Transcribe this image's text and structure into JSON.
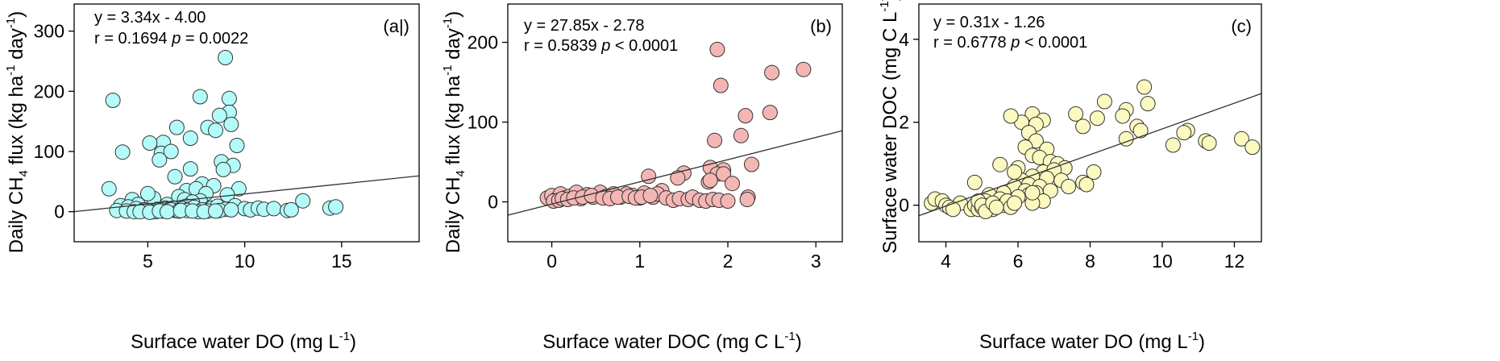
{
  "colors": {
    "a": "#b3fbf9",
    "b": "#f4b6b5",
    "c": "#fbf9bf",
    "marker_edge": "#333333",
    "fit_line": "#333333",
    "frame": "#000000"
  },
  "panels": [
    {
      "panel_label": "(a|)",
      "eq_line": "y = 3.34x - 4.00",
      "stat_r": "r = 0.1694 ",
      "stat_p_symbol": "p",
      "stat_p_rest": " = 0.0022",
      "xlabel": {
        "main": "Surface water DO (mg L",
        "sup": "-1",
        "tail": ")"
      },
      "ylabel": {
        "p1": "Daily CH",
        "sub": "4",
        "p2": " flux (kg ha",
        "sup1": "-1",
        "p3": " day",
        "sup2": "-1",
        "p4": ")"
      },
      "xticks": [
        "5",
        "10",
        "15"
      ],
      "yticks": [
        "0",
        "100",
        "200",
        "300"
      ]
    },
    {
      "panel_label": "(b)",
      "eq_line": "y = 27.85x - 2.78",
      "stat_r": "r = 0.5839 ",
      "stat_p_symbol": "p",
      "stat_p_rest": " < 0.0001",
      "xlabel": {
        "main": "Surface water DOC (mg C L",
        "sup": "-1",
        "tail": ")"
      },
      "ylabel": {
        "p1": "Daily CH",
        "sub": "4",
        "p2": " flux (kg ha",
        "sup1": "-1",
        "p3": " day",
        "sup2": "-1",
        "p4": ")"
      },
      "xticks": [
        "0",
        "1",
        "2",
        "3"
      ],
      "yticks": [
        "0",
        "100",
        "200"
      ]
    },
    {
      "panel_label": "(c)",
      "eq_line": "y = 0.31x - 1.26",
      "stat_r": "r = 0.6778 ",
      "stat_p_symbol": "p",
      "stat_p_rest": " < 0.0001",
      "xlabel": {
        "main": "Surface water DO (mg L",
        "sup": "-1",
        "tail": ")"
      },
      "ylabel": {
        "main": "Surface water DOC (mg C L",
        "sup": "-1",
        "tail": ")"
      },
      "xticks": [
        "4",
        "6",
        "8",
        "10",
        "12"
      ],
      "yticks": [
        "0",
        "2",
        "4"
      ]
    }
  ],
  "chart_data": [
    {
      "type": "scatter",
      "panel": "a",
      "xlim": [
        1.2,
        19
      ],
      "ylim": [
        -50,
        345
      ],
      "grid": false,
      "fit": {
        "slope": 3.34,
        "intercept": -4.0
      },
      "x": [
        3.2,
        9.0,
        7.7,
        9.2,
        9.2,
        9.3,
        8.7,
        8.1,
        8.5,
        8.8,
        6.5,
        7.2,
        9.6,
        5.8,
        5.1,
        3.7,
        5.7,
        6.2,
        5.6,
        9.4,
        8.9,
        7.2,
        9.7,
        6.4,
        7.8,
        8.4,
        7.0,
        7.5,
        8.0,
        9.1,
        4.2,
        5.3,
        6.6,
        6.9,
        7.7,
        7.3,
        6.0,
        3.0,
        5.0,
        6.9,
        8.2,
        4.5,
        6.3,
        7.0,
        3.6,
        4.0,
        4.4,
        4.8,
        5.2,
        5.5,
        5.9,
        6.1,
        6.4,
        6.8,
        7.1,
        7.4,
        7.8,
        8.3,
        8.6,
        9.0,
        9.5,
        10.0,
        10.3,
        10.7,
        11.0,
        11.5,
        12.2,
        12.4,
        13.0,
        14.4,
        14.7,
        3.4,
        3.9,
        4.3,
        4.7,
        5.0,
        5.4,
        5.8,
        6.2,
        6.6,
        7.0,
        7.6,
        8.1,
        8.7,
        9.3,
        4.6,
        5.1,
        5.6,
        6.0,
        6.7,
        7.3,
        7.9,
        8.5
      ],
      "y": [
        185,
        256,
        191,
        188,
        165,
        145,
        160,
        140,
        135,
        83,
        140,
        122,
        110,
        115,
        114,
        99,
        97,
        100,
        86,
        77,
        70,
        71,
        38,
        58,
        46,
        43,
        35,
        38,
        30,
        28,
        20,
        22,
        25,
        20,
        18,
        16,
        12,
        38,
        30,
        8,
        5,
        12,
        6,
        9,
        10,
        8,
        5,
        3,
        2,
        4,
        6,
        3,
        2,
        5,
        4,
        7,
        3,
        6,
        9,
        4,
        10,
        5,
        3,
        6,
        4,
        5,
        2,
        3,
        18,
        6,
        8,
        2,
        1,
        0,
        1,
        2,
        0,
        1,
        3,
        1,
        2,
        0,
        1,
        2,
        3,
        0,
        -1,
        1,
        0,
        2,
        1,
        0,
        1
      ]
    },
    {
      "type": "scatter",
      "panel": "b",
      "xlim": [
        -0.5,
        3.3
      ],
      "ylim": [
        -50,
        248
      ],
      "grid": false,
      "fit": {
        "slope": 27.85,
        "intercept": -2.78
      },
      "x": [
        1.88,
        2.86,
        2.5,
        1.92,
        2.2,
        2.48,
        1.85,
        2.15,
        1.8,
        1.95,
        2.27,
        1.88,
        1.78,
        1.5,
        1.43,
        1.25,
        1.1,
        1.8,
        1.95,
        2.05,
        2.23,
        2.22,
        -0.05,
        0.0,
        0.05,
        0.1,
        0.15,
        0.2,
        0.28,
        0.33,
        0.4,
        0.47,
        0.55,
        0.62,
        0.7,
        0.78,
        0.85,
        0.92,
        1.0,
        1.05,
        1.15,
        1.2,
        1.3,
        1.38,
        1.45,
        1.55,
        1.6,
        1.68,
        1.75,
        1.83,
        1.9,
        2.0,
        0.02,
        0.08,
        0.12,
        0.18,
        0.25,
        0.35,
        0.45,
        0.58,
        0.66,
        0.75,
        0.88,
        0.95,
        1.02,
        1.12
      ],
      "y": [
        191,
        166,
        162,
        146,
        108,
        112,
        77,
        83,
        43,
        40,
        47,
        35,
        25,
        36,
        30,
        14,
        32,
        27,
        35,
        23,
        6,
        3,
        5,
        8,
        3,
        10,
        5,
        7,
        12,
        4,
        9,
        6,
        12,
        7,
        10,
        6,
        10,
        8,
        5,
        11,
        6,
        10,
        5,
        2,
        4,
        3,
        6,
        2,
        1,
        3,
        2,
        1,
        1,
        2,
        4,
        3,
        5,
        6,
        8,
        5,
        4,
        6,
        7,
        5,
        6,
        8
      ]
    },
    {
      "type": "scatter",
      "panel": "c",
      "xlim": [
        3.25,
        12.75
      ],
      "ylim": [
        -0.88,
        4.85
      ],
      "grid": false,
      "fit": {
        "slope": 0.31,
        "intercept": -1.26
      },
      "x": [
        9.5,
        8.4,
        9.6,
        9.0,
        8.9,
        6.4,
        6.7,
        6.1,
        6.5,
        5.8,
        7.6,
        8.2,
        7.8,
        9.3,
        9.4,
        9.0,
        10.7,
        10.6,
        11.2,
        11.3,
        10.3,
        12.2,
        12.5,
        6.3,
        6.5,
        6.8,
        6.2,
        6.4,
        6.6,
        6.9,
        7.1,
        7.3,
        6.0,
        6.7,
        7.0,
        6.4,
        6.8,
        7.2,
        7.8,
        8.1,
        6.1,
        6.3,
        6.6,
        5.9,
        6.2,
        6.5,
        6.9,
        7.4,
        7.9,
        5.5,
        5.9,
        6.3,
        6.7,
        4.8,
        5.2,
        5.6,
        6.0,
        6.4,
        3.6,
        3.7,
        3.9,
        4.0,
        4.1,
        4.4,
        4.7,
        4.8,
        4.9,
        5.0,
        5.1,
        5.2,
        5.3,
        5.4,
        5.5,
        5.6,
        5.7,
        5.8,
        5.9,
        4.9,
        5.0,
        5.1,
        5.3,
        5.4,
        6.4,
        4.2
      ],
      "y": [
        2.85,
        2.5,
        2.45,
        2.3,
        2.15,
        2.2,
        2.05,
        2.0,
        1.95,
        2.15,
        2.2,
        2.1,
        1.9,
        1.9,
        1.8,
        1.6,
        1.8,
        1.75,
        1.55,
        1.5,
        1.45,
        1.6,
        1.4,
        1.75,
        1.55,
        1.35,
        1.4,
        1.2,
        1.15,
        1.05,
        1.0,
        0.9,
        0.9,
        0.8,
        0.85,
        0.7,
        0.65,
        0.6,
        0.55,
        0.8,
        0.6,
        0.5,
        0.45,
        0.45,
        0.35,
        0.3,
        0.35,
        0.45,
        0.5,
        0.98,
        0.8,
        0.25,
        0.1,
        0.55,
        0.25,
        0.3,
        0.2,
        0.05,
        0.05,
        0.15,
        0.1,
        0.0,
        -0.05,
        0.05,
        -0.1,
        0.0,
        -0.1,
        -0.05,
        0.1,
        0.0,
        -0.1,
        0.05,
        0.15,
        0.0,
        0.1,
        -0.05,
        0.05,
        0.1,
        0.0,
        -0.15,
        0.05,
        -0.05,
        0.3,
        -0.1
      ]
    }
  ]
}
